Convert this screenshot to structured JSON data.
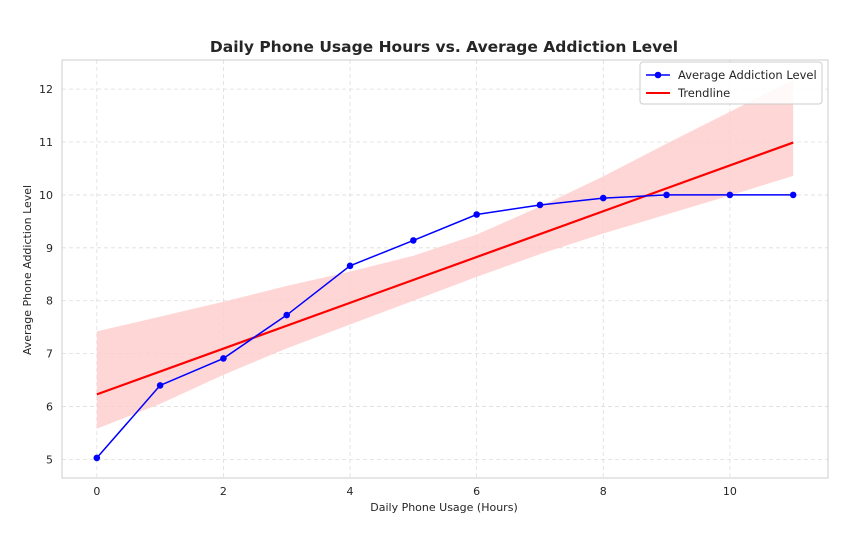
{
  "chart_data": {
    "type": "line",
    "title": "Daily Phone Usage Hours vs. Average Addiction Level",
    "xlabel": "Daily Phone Usage (Hours)",
    "ylabel": "Average Phone Addiction Level",
    "xlim": [
      -0.55,
      11.55
    ],
    "ylim": [
      4.65,
      12.55
    ],
    "xticks": [
      0,
      2,
      4,
      6,
      8,
      10
    ],
    "yticks": [
      5,
      6,
      7,
      8,
      9,
      10,
      11,
      12
    ],
    "grid": true,
    "legend_position": "top-right",
    "series": [
      {
        "name": "Average Addiction Level",
        "kind": "line-with-markers",
        "color": "#0000ff",
        "x": [
          0,
          1,
          2,
          3,
          4,
          5,
          6,
          7,
          8,
          9,
          10,
          11
        ],
        "y": [
          5.03,
          6.4,
          6.91,
          7.73,
          8.66,
          9.14,
          9.63,
          9.81,
          9.94,
          10.0,
          10.0,
          10.0
        ]
      },
      {
        "name": "Trendline",
        "kind": "line",
        "color": "#ff0000",
        "x": [
          0,
          11
        ],
        "y": [
          6.23,
          10.99
        ]
      }
    ],
    "confidence_band": {
      "color": "#ffcccc",
      "x": [
        0,
        1,
        2,
        3,
        4,
        5,
        6,
        7,
        8,
        9,
        10,
        11
      ],
      "lower": [
        5.58,
        6.05,
        6.6,
        7.1,
        7.55,
        8.0,
        8.45,
        8.88,
        9.27,
        9.63,
        9.99,
        10.36
      ],
      "upper": [
        7.42,
        7.7,
        7.98,
        8.28,
        8.55,
        8.85,
        9.25,
        9.78,
        10.35,
        10.97,
        11.57,
        12.18
      ]
    }
  }
}
